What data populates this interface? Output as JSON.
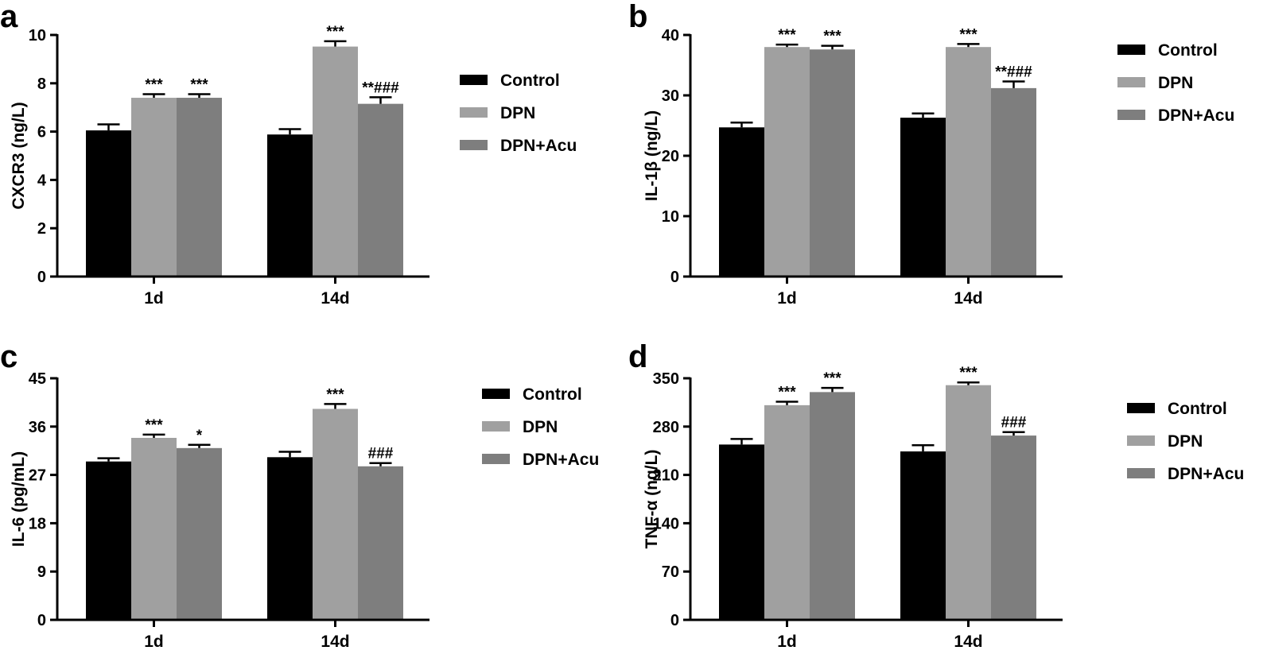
{
  "colors": {
    "Control": "#000000",
    "DPN": "#a0a0a0",
    "DPN+Acu": "#7e7e7e",
    "axis": "#000000"
  },
  "chart_data": [
    {
      "panel": "a",
      "type": "bar",
      "ylabel": "CXCR3 (ng/L)",
      "ylim": [
        0,
        10
      ],
      "yticks": [
        "0",
        "2",
        "4",
        "6",
        "8",
        "10"
      ],
      "categories": [
        "1d",
        "14d"
      ],
      "legend": "right",
      "series": [
        {
          "name": "Control",
          "values": [
            6.05,
            5.88
          ],
          "errors": [
            0.25,
            0.22
          ],
          "annotations": [
            "",
            ""
          ]
        },
        {
          "name": "DPN",
          "values": [
            7.4,
            9.52
          ],
          "errors": [
            0.15,
            0.22
          ],
          "annotations": [
            "***",
            "***"
          ]
        },
        {
          "name": "DPN+Acu",
          "values": [
            7.4,
            7.15
          ],
          "errors": [
            0.15,
            0.27
          ],
          "annotations": [
            "***",
            "**###"
          ]
        }
      ]
    },
    {
      "panel": "b",
      "type": "bar",
      "ylabel": "IL-1β (ng/L)",
      "ylim": [
        0,
        40
      ],
      "yticks": [
        "0",
        "10",
        "20",
        "30",
        "40"
      ],
      "categories": [
        "1d",
        "14d"
      ],
      "legend": "right",
      "series": [
        {
          "name": "Control",
          "values": [
            24.7,
            26.3
          ],
          "errors": [
            0.8,
            0.7
          ],
          "annotations": [
            "",
            ""
          ]
        },
        {
          "name": "DPN",
          "values": [
            38.0,
            38.0
          ],
          "errors": [
            0.4,
            0.5
          ],
          "annotations": [
            "***",
            "***"
          ]
        },
        {
          "name": "DPN+Acu",
          "values": [
            37.6,
            31.2
          ],
          "errors": [
            0.6,
            1.1
          ],
          "annotations": [
            "***",
            "**###"
          ]
        }
      ]
    },
    {
      "panel": "c",
      "type": "bar",
      "ylabel": "IL-6 (pg/mL)",
      "ylim": [
        0,
        45
      ],
      "yticks": [
        "0",
        "9",
        "18",
        "27",
        "36",
        "45"
      ],
      "categories": [
        "1d",
        "14d"
      ],
      "legend": "right",
      "series": [
        {
          "name": "Control",
          "values": [
            29.5,
            30.3
          ],
          "errors": [
            0.6,
            1.0
          ],
          "annotations": [
            "",
            ""
          ]
        },
        {
          "name": "DPN",
          "values": [
            33.9,
            39.3
          ],
          "errors": [
            0.6,
            0.9
          ],
          "annotations": [
            "***",
            "***"
          ]
        },
        {
          "name": "DPN+Acu",
          "values": [
            32.0,
            28.6
          ],
          "errors": [
            0.6,
            0.6
          ],
          "annotations": [
            "*",
            "###"
          ]
        }
      ]
    },
    {
      "panel": "d",
      "type": "bar",
      "ylabel": "TNF-α (ng/L)",
      "ylim": [
        0,
        350
      ],
      "yticks": [
        "0",
        "70",
        "140",
        "210",
        "280",
        "350"
      ],
      "categories": [
        "1d",
        "14d"
      ],
      "legend": "right",
      "series": [
        {
          "name": "Control",
          "values": [
            254,
            244
          ],
          "errors": [
            8,
            9
          ],
          "annotations": [
            "",
            ""
          ]
        },
        {
          "name": "DPN",
          "values": [
            311,
            340
          ],
          "errors": [
            5,
            4
          ],
          "annotations": [
            "***",
            "***"
          ]
        },
        {
          "name": "DPN+Acu",
          "values": [
            330,
            267
          ],
          "errors": [
            6,
            5
          ],
          "annotations": [
            "***",
            "###"
          ]
        }
      ]
    }
  ]
}
